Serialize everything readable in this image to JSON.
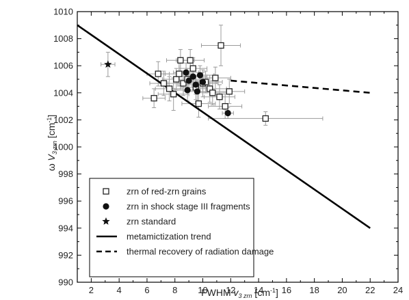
{
  "chart_data": {
    "type": "scatter",
    "xlabel": {
      "prefix": "FWHM ",
      "symbol": "v",
      "sub": "3 zrn",
      "unit_pre": " [cm",
      "unit_sup": "-1",
      "unit_post": "]"
    },
    "ylabel": {
      "prefix": "ω ",
      "symbol": "V",
      "sub": "3 zrn",
      "unit_pre": " [cm",
      "unit_sup": "-1",
      "unit_post": "]"
    },
    "xlim": [
      1,
      24
    ],
    "ylim": [
      990,
      1010
    ],
    "xticks": [
      2,
      4,
      6,
      8,
      10,
      12,
      14,
      16,
      18,
      20,
      22,
      24
    ],
    "yticks": [
      990,
      992,
      994,
      996,
      998,
      1000,
      1002,
      1004,
      1006,
      1008,
      1010
    ],
    "grid": false,
    "legend_position": "bottom-left",
    "series": [
      {
        "name": "zrn of red-zrn grains",
        "marker": "open-square",
        "points": [
          {
            "x": 6.5,
            "y": 1003.6,
            "xerr": 0.8,
            "yerr": 0.7
          },
          {
            "x": 6.8,
            "y": 1005.4,
            "xerr": 0.8,
            "yerr": 0.9
          },
          {
            "x": 7.2,
            "y": 1004.7,
            "xerr": 1.0,
            "yerr": 0.9
          },
          {
            "x": 7.6,
            "y": 1004.3,
            "xerr": 1.0,
            "yerr": 0.9
          },
          {
            "x": 7.9,
            "y": 1003.9,
            "xerr": 1.1,
            "yerr": 1.2
          },
          {
            "x": 8.1,
            "y": 1005.0,
            "xerr": 1.0,
            "yerr": 0.8
          },
          {
            "x": 8.3,
            "y": 1005.4,
            "xerr": 1.0,
            "yerr": 0.9
          },
          {
            "x": 8.4,
            "y": 1006.4,
            "xerr": 1.0,
            "yerr": 0.8
          },
          {
            "x": 8.6,
            "y": 1004.7,
            "xerr": 1.1,
            "yerr": 0.9
          },
          {
            "x": 8.9,
            "y": 1005.0,
            "xerr": 1.0,
            "yerr": 0.8
          },
          {
            "x": 9.1,
            "y": 1006.4,
            "xerr": 1.0,
            "yerr": 0.8
          },
          {
            "x": 9.3,
            "y": 1005.8,
            "xerr": 1.0,
            "yerr": 0.8
          },
          {
            "x": 9.5,
            "y": 1004.4,
            "xerr": 1.1,
            "yerr": 0.9
          },
          {
            "x": 9.7,
            "y": 1003.2,
            "xerr": 1.2,
            "yerr": 1.0
          },
          {
            "x": 10.0,
            "y": 1004.7,
            "xerr": 1.1,
            "yerr": 1.0
          },
          {
            "x": 10.2,
            "y": 1004.8,
            "xerr": 1.2,
            "yerr": 0.8
          },
          {
            "x": 10.5,
            "y": 1004.3,
            "xerr": 1.2,
            "yerr": 1.0
          },
          {
            "x": 10.7,
            "y": 1004.0,
            "xerr": 1.2,
            "yerr": 0.9
          },
          {
            "x": 10.9,
            "y": 1005.1,
            "xerr": 1.1,
            "yerr": 0.8
          },
          {
            "x": 11.2,
            "y": 1003.7,
            "xerr": 1.1,
            "yerr": 0.9
          },
          {
            "x": 11.3,
            "y": 1007.5,
            "xerr": 1.4,
            "yerr": 1.5
          },
          {
            "x": 11.6,
            "y": 1003.0,
            "xerr": 1.2,
            "yerr": 0.9
          },
          {
            "x": 11.9,
            "y": 1004.1,
            "xerr": 1.1,
            "yerr": 0.9
          },
          {
            "x": 14.5,
            "y": 1002.1,
            "xerr": 4.1,
            "yerr": 0.5
          }
        ]
      },
      {
        "name": "zrn in shock stage III fragments",
        "marker": "filled-circle",
        "points": [
          {
            "x": 8.8,
            "y": 1005.5,
            "xerr": 0.9,
            "yerr": 0.7
          },
          {
            "x": 8.9,
            "y": 1004.2,
            "xerr": 0.9,
            "yerr": 0.8
          },
          {
            "x": 9.0,
            "y": 1004.9,
            "xerr": 0.9,
            "yerr": 0.7
          },
          {
            "x": 9.3,
            "y": 1005.2,
            "xerr": 1.0,
            "yerr": 0.7
          },
          {
            "x": 9.5,
            "y": 1004.6,
            "xerr": 1.0,
            "yerr": 0.7
          },
          {
            "x": 9.6,
            "y": 1004.1,
            "xerr": 1.0,
            "yerr": 0.8
          },
          {
            "x": 9.8,
            "y": 1005.3,
            "xerr": 1.0,
            "yerr": 0.7
          },
          {
            "x": 10.0,
            "y": 1004.8,
            "xerr": 1.0,
            "yerr": 0.7
          },
          {
            "x": 11.8,
            "y": 1002.5,
            "xerr": 0.4,
            "yerr": 0.4
          }
        ]
      },
      {
        "name": "zrn standard",
        "marker": "star",
        "points": [
          {
            "x": 3.2,
            "y": 1006.1,
            "xerr": 0.5,
            "yerr": 0.9
          }
        ]
      },
      {
        "name": "metamictization trend",
        "marker": "solid-line",
        "line": [
          {
            "x": 1,
            "y": 1009.0
          },
          {
            "x": 22,
            "y": 994.0
          }
        ]
      },
      {
        "name": "thermal recovery of radiation damage",
        "marker": "dashed-line",
        "line": [
          {
            "x": 12.0,
            "y": 1004.9
          },
          {
            "x": 22,
            "y": 1004.0
          }
        ]
      }
    ]
  }
}
